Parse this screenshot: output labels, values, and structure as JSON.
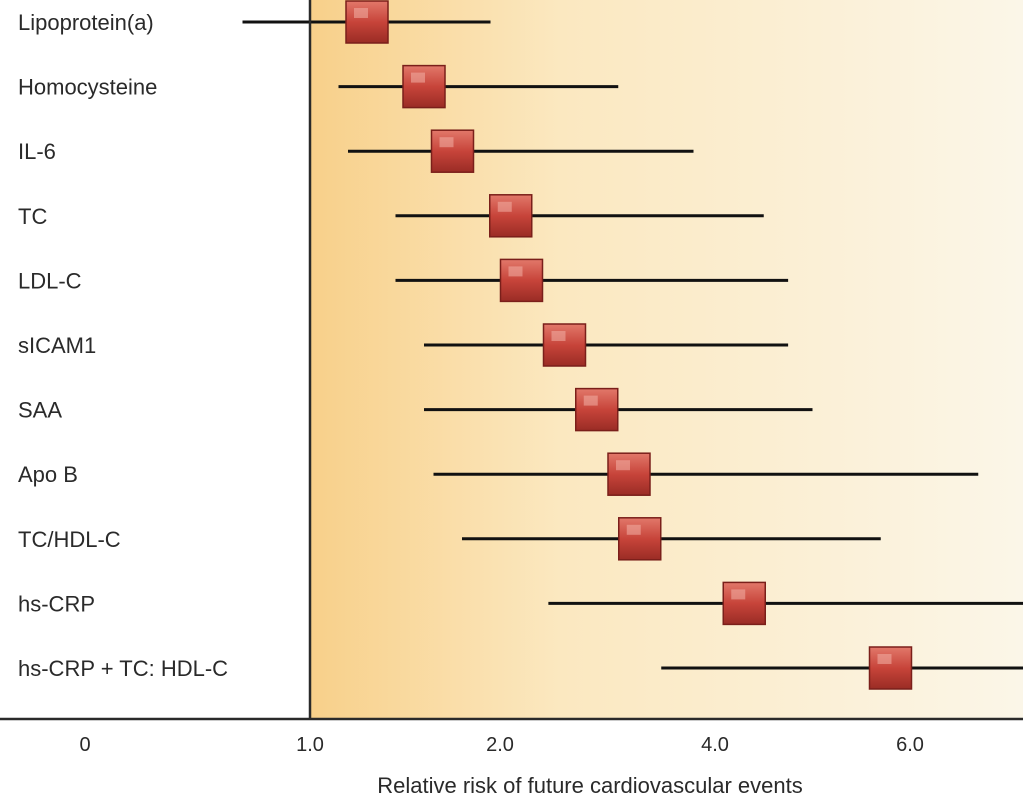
{
  "chart_data": {
    "type": "forest",
    "title": "",
    "xlabel": "Relative risk of future cardiovascular events",
    "ylabel": "",
    "x_ticks": [
      {
        "value": 0,
        "label": "0"
      },
      {
        "value": 1.0,
        "label": "1.0"
      },
      {
        "value": 2.0,
        "label": "2.0"
      },
      {
        "value": 4.0,
        "label": "4.0"
      },
      {
        "value": 6.0,
        "label": "6.0"
      }
    ],
    "reference_line": 1.0,
    "rows": [
      {
        "label": "Lipoprotein(a)",
        "estimate": 1.3,
        "low": 0.7,
        "high": 1.95
      },
      {
        "label": "Homocysteine",
        "estimate": 1.6,
        "low": 1.15,
        "high": 3.1
      },
      {
        "label": "IL-6",
        "estimate": 1.75,
        "low": 1.2,
        "high": 3.8
      },
      {
        "label": "TC",
        "estimate": 2.1,
        "low": 1.45,
        "high": 4.5
      },
      {
        "label": "LDL-C",
        "estimate": 2.2,
        "low": 1.45,
        "high": 4.75
      },
      {
        "label": "sICAM1",
        "estimate": 2.6,
        "low": 1.6,
        "high": 4.75
      },
      {
        "label": "SAA",
        "estimate": 2.9,
        "low": 1.6,
        "high": 5.0
      },
      {
        "label": "Apo B",
        "estimate": 3.2,
        "low": 1.65,
        "high": 6.7
      },
      {
        "label": "TC/HDL-C",
        "estimate": 3.3,
        "low": 1.8,
        "high": 5.7
      },
      {
        "label": "hs-CRP",
        "estimate": 4.3,
        "low": 2.45,
        "high": 7.2
      },
      {
        "label": "hs-CRP + TC: HDL-C",
        "estimate": 5.8,
        "low": 3.5,
        "high": 7.2
      }
    ],
    "colors": {
      "marker": "#c7443a",
      "whisker": "#111111",
      "gradient_start": "#f8d08a",
      "gradient_end": "#fbf6e8"
    }
  }
}
